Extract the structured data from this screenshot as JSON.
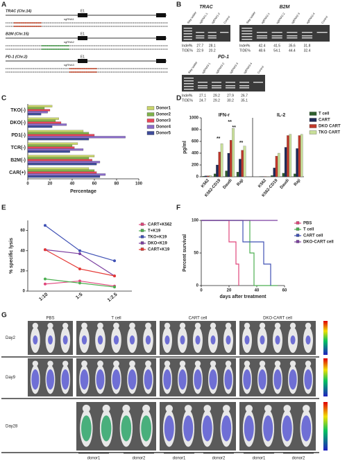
{
  "panel_a": {
    "label": "A",
    "loci": [
      {
        "name": "TRAC (Chr.14)",
        "exon": "E1",
        "guide": "sgRNA1"
      },
      {
        "name": "B2M (Chr.15)",
        "exon": "E1",
        "guide": "sgRNA2"
      },
      {
        "name": "PD-1 (Chr.2)",
        "exon": "E1",
        "guide": "sgRNA3"
      }
    ]
  },
  "panel_b": {
    "label": "B",
    "row_labels": [
      "Indel%",
      "TIDE%"
    ],
    "gels": [
      {
        "title": "TRAC",
        "lanes": [
          "Step ladder",
          "sgRNA1-1",
          "sgRNA1-2",
          "Control"
        ],
        "indel": [
          27.7,
          28.1
        ],
        "tide": [
          22.9,
          20.2
        ]
      },
      {
        "title": "B2M",
        "lanes": [
          "Step ladder",
          "sgRNA2-1",
          "sgRNA2-2",
          "sgRNA2-3",
          "sgRNA2-4",
          "Control"
        ],
        "indel": [
          42.4,
          41.5,
          35.6,
          31.8
        ],
        "tide": [
          48.6,
          54.1,
          44.4,
          32.4
        ]
      },
      {
        "title": "PD-1",
        "lanes": [
          "Step ladder",
          "sgRNA3-1",
          "sgRNA3-2",
          "sgRNA3-3",
          "sgRNA3-4",
          "Control"
        ],
        "indel": [
          27.1,
          29.2,
          27.9,
          26.7
        ],
        "tide": [
          24.7,
          29.2,
          30.2,
          35.1
        ]
      }
    ]
  },
  "chart_data": [
    {
      "panel": "C",
      "type": "hbar",
      "categories": [
        "TKO(-)",
        "DKO(-)",
        "PD1(-)",
        "TCR(-)",
        "B2M(-)",
        "CAR(+)"
      ],
      "series": [
        {
          "name": "Donor1",
          "color": "#c8d46a",
          "values": [
            22,
            28,
            50,
            45,
            60,
            55
          ]
        },
        {
          "name": "Donor2",
          "color": "#7fb24a",
          "values": [
            15,
            25,
            55,
            40,
            55,
            60
          ]
        },
        {
          "name": "Donor3",
          "color": "#e8465a",
          "values": [
            20,
            30,
            60,
            42,
            58,
            62
          ]
        },
        {
          "name": "Donor4",
          "color": "#8a6cc8",
          "values": [
            18,
            35,
            88,
            50,
            65,
            70
          ]
        },
        {
          "name": "Donor5",
          "color": "#3d4b9a",
          "values": [
            12,
            22,
            55,
            38,
            62,
            65
          ]
        }
      ],
      "xlim": [
        0,
        100
      ],
      "xticks": [
        0,
        20,
        40,
        60,
        80,
        100
      ],
      "xlabel": "Percentage"
    },
    {
      "panel": "D",
      "type": "bar",
      "group_labels": [
        "IFN-r",
        "IL-2"
      ],
      "categories": [
        "K562",
        "K562-CD19",
        "Daudi",
        "Raji",
        "K562",
        "K562-CD19",
        "Daudi",
        "Raji"
      ],
      "series": [
        {
          "name": "T cell",
          "color": "#2e5e2e",
          "values": [
            10,
            50,
            100,
            80,
            5,
            20,
            60,
            50
          ]
        },
        {
          "name": "CART",
          "color": "#1f2a5a",
          "values": [
            15,
            200,
            400,
            300,
            5,
            150,
            500,
            480
          ]
        },
        {
          "name": "DKO CART",
          "color": "#c0392b",
          "values": [
            15,
            420,
            620,
            450,
            5,
            350,
            700,
            700
          ]
        },
        {
          "name": "TKO CART",
          "color": "#c9e09a",
          "values": [
            20,
            560,
            820,
            520,
            5,
            400,
            720,
            720
          ]
        }
      ],
      "annotations": [
        "**",
        "**",
        "**",
        "**"
      ],
      "ylim": [
        0,
        1000
      ],
      "yticks": [
        0,
        200,
        400,
        600,
        800,
        1000
      ],
      "ylabel": "pg/ml"
    },
    {
      "panel": "E",
      "type": "line",
      "categories": [
        "1:10",
        "1:5",
        "1:2.5"
      ],
      "series": [
        {
          "name": "CART+K562",
          "color": "#e0457b",
          "values": [
            7,
            10,
            5
          ]
        },
        {
          "name": "T+K19",
          "color": "#4caf50",
          "values": [
            12,
            8,
            4
          ]
        },
        {
          "name": "TKO+K19",
          "color": "#3f51b5",
          "values": [
            65,
            40,
            30
          ]
        },
        {
          "name": "DKO+K19",
          "color": "#7b3fa0",
          "values": [
            41,
            37,
            15
          ]
        },
        {
          "name": "CART+K19",
          "color": "#e53935",
          "values": [
            41,
            22,
            15
          ]
        }
      ],
      "ylim": [
        0,
        70
      ],
      "yticks": [
        0,
        20,
        40,
        60
      ],
      "ylabel": "% specific lysis"
    },
    {
      "panel": "F",
      "type": "step",
      "series": [
        {
          "name": "PBS",
          "color": "#e0457b",
          "x": [
            0,
            20,
            25,
            27
          ],
          "values": [
            100,
            67,
            33,
            0
          ]
        },
        {
          "name": "T cell",
          "color": "#4caf50",
          "x": [
            0,
            35,
            38,
            55
          ],
          "values": [
            100,
            50,
            0,
            0
          ]
        },
        {
          "name": "CART cell",
          "color": "#3f51b5",
          "x": [
            0,
            30,
            45,
            50
          ],
          "values": [
            100,
            67,
            33,
            0
          ]
        },
        {
          "name": "DKO-CART cell",
          "color": "#7b3fa0",
          "x": [
            0,
            55
          ],
          "values": [
            100,
            100
          ]
        }
      ],
      "xlim": [
        0,
        60
      ],
      "xticks": [
        0,
        20,
        40,
        60
      ],
      "ylim": [
        0,
        100
      ],
      "yticks": [
        0,
        50,
        100
      ],
      "xlabel": "days after treatment",
      "ylabel": "Percent survival"
    }
  ],
  "panel_g": {
    "label": "G",
    "groups": [
      "PBS",
      "T cell",
      "CART cell",
      "DKO-CART cell"
    ],
    "days": [
      "Day2",
      "Day9",
      "Day28"
    ],
    "donors": [
      "donor1",
      "donor2",
      "donor1",
      "donor2",
      "donor1",
      "donor2"
    ]
  }
}
